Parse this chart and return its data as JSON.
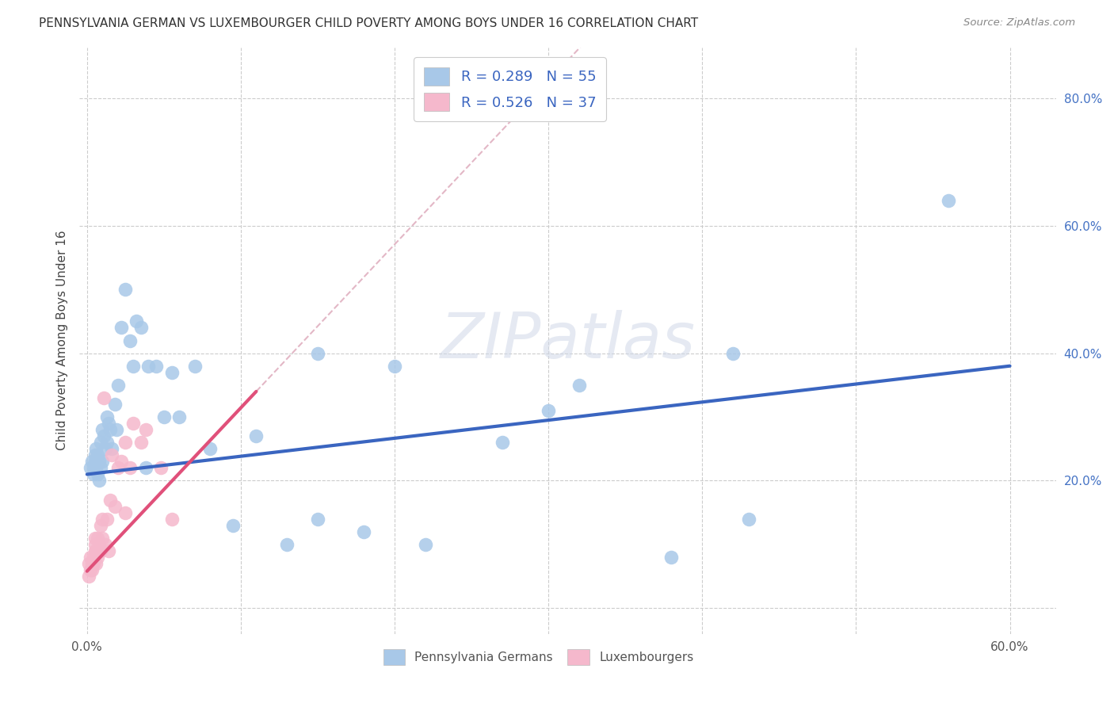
{
  "title": "PENNSYLVANIA GERMAN VS LUXEMBOURGER CHILD POVERTY AMONG BOYS UNDER 16 CORRELATION CHART",
  "source": "Source: ZipAtlas.com",
  "ylabel": "Child Poverty Among Boys Under 16",
  "xlim": [
    -0.005,
    0.63
  ],
  "ylim": [
    -0.04,
    0.88
  ],
  "bg_color": "#ffffff",
  "grid_color": "#cccccc",
  "watermark_text": "ZIPatlas",
  "pa_german_color": "#a8c8e8",
  "pa_german_line_color": "#3a65c0",
  "luxembourger_color": "#f5b8cc",
  "luxembourger_line_color": "#e0507a",
  "dash_ext_color": "#e0b0c0",
  "legend_line1": "R = 0.289   N = 55",
  "legend_line2": "R = 0.526   N = 37",
  "pa_x": [
    0.002,
    0.003,
    0.004,
    0.004,
    0.005,
    0.005,
    0.006,
    0.006,
    0.007,
    0.007,
    0.008,
    0.008,
    0.009,
    0.009,
    0.01,
    0.01,
    0.011,
    0.012,
    0.013,
    0.013,
    0.014,
    0.015,
    0.016,
    0.018,
    0.019,
    0.02,
    0.022,
    0.025,
    0.028,
    0.03,
    0.032,
    0.035,
    0.038,
    0.04,
    0.045,
    0.05,
    0.055,
    0.06,
    0.07,
    0.08,
    0.095,
    0.11,
    0.13,
    0.15,
    0.18,
    0.22,
    0.27,
    0.32,
    0.38,
    0.43,
    0.15,
    0.2,
    0.3,
    0.42,
    0.56
  ],
  "pa_y": [
    0.22,
    0.23,
    0.21,
    0.22,
    0.23,
    0.24,
    0.22,
    0.25,
    0.21,
    0.24,
    0.2,
    0.23,
    0.26,
    0.22,
    0.23,
    0.28,
    0.27,
    0.25,
    0.3,
    0.26,
    0.29,
    0.28,
    0.25,
    0.32,
    0.28,
    0.35,
    0.44,
    0.5,
    0.42,
    0.38,
    0.45,
    0.44,
    0.22,
    0.38,
    0.38,
    0.3,
    0.37,
    0.3,
    0.38,
    0.25,
    0.13,
    0.27,
    0.1,
    0.14,
    0.12,
    0.1,
    0.26,
    0.35,
    0.08,
    0.14,
    0.4,
    0.38,
    0.31,
    0.4,
    0.64
  ],
  "lux_x": [
    0.001,
    0.001,
    0.002,
    0.002,
    0.003,
    0.003,
    0.004,
    0.004,
    0.005,
    0.005,
    0.005,
    0.006,
    0.006,
    0.007,
    0.007,
    0.008,
    0.009,
    0.009,
    0.01,
    0.01,
    0.011,
    0.012,
    0.013,
    0.014,
    0.015,
    0.016,
    0.018,
    0.02,
    0.022,
    0.025,
    0.025,
    0.028,
    0.03,
    0.035,
    0.038,
    0.048,
    0.055
  ],
  "lux_y": [
    0.05,
    0.07,
    0.06,
    0.08,
    0.07,
    0.06,
    0.08,
    0.07,
    0.1,
    0.09,
    0.11,
    0.07,
    0.09,
    0.08,
    0.11,
    0.1,
    0.09,
    0.13,
    0.11,
    0.14,
    0.33,
    0.1,
    0.14,
    0.09,
    0.17,
    0.24,
    0.16,
    0.22,
    0.23,
    0.26,
    0.15,
    0.22,
    0.29,
    0.26,
    0.28,
    0.22,
    0.14
  ],
  "pa_line_x0": 0.0,
  "pa_line_y0": 0.21,
  "pa_line_x1": 0.6,
  "pa_line_y1": 0.38,
  "lux_line_x0": 0.0,
  "lux_line_y0": 0.058,
  "lux_line_x1": 0.11,
  "lux_line_y1": 0.34,
  "x_tick_positions": [
    0.0,
    0.1,
    0.2,
    0.3,
    0.4,
    0.5,
    0.6
  ],
  "x_tick_labels": [
    "0.0%",
    "",
    "",
    "",
    "",
    "",
    "60.0%"
  ],
  "y_tick_positions": [
    0.0,
    0.2,
    0.4,
    0.6,
    0.8
  ],
  "y_tick_labels": [
    "",
    "20.0%",
    "40.0%",
    "60.0%",
    "80.0%"
  ]
}
